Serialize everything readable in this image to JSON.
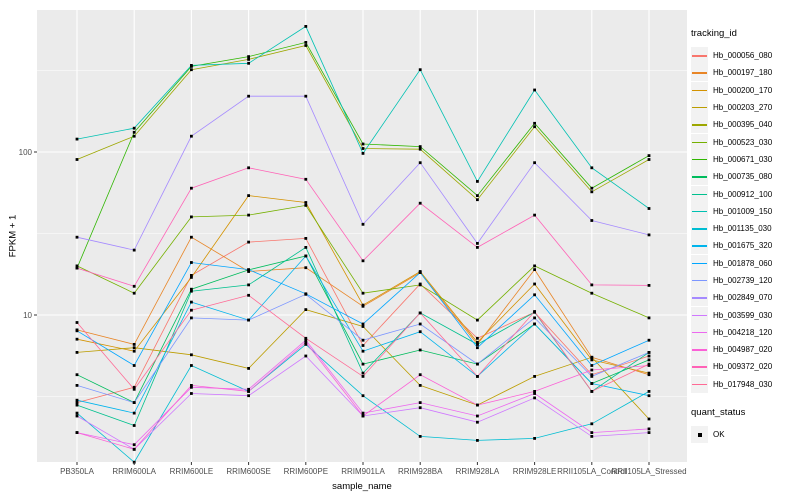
{
  "chart_data": {
    "type": "line",
    "title": "",
    "xlabel": "sample_name",
    "ylabel": "FPKM + 1",
    "y_scale": "log10",
    "y_ticks": [
      100,
      10
    ],
    "y_minor_gridlines": [
      316.23,
      31.62,
      3.162
    ],
    "ylim_pixels_note": "log axis, decade height 163px",
    "legend_position": "right",
    "grid": true,
    "categories": [
      "PB350LA",
      "RRIM600LA",
      "RRIM600LE",
      "RRIM600SE",
      "RRIM600PE",
      "RRIM901LA",
      "RRIM928BA",
      "RRIM928LA",
      "RRIM928LE",
      "RRII105LA_Control",
      "RRII105LA_Stressed"
    ],
    "series": [
      {
        "name": "Hb_000056_080",
        "color": "#F8766D",
        "values": [
          2.9,
          3.6,
          17.5,
          28,
          29.5,
          6.5,
          15.5,
          7.2,
          10.4,
          4.3,
          5.6
        ]
      },
      {
        "name": "Hb_000197_180",
        "color": "#E88526",
        "values": [
          8.1,
          6.6,
          30,
          18.5,
          19.5,
          11.3,
          18.2,
          6.6,
          19,
          5.5,
          4.3
        ]
      },
      {
        "name": "Hb_000200_170",
        "color": "#D39200",
        "values": [
          7.1,
          6.0,
          17,
          54,
          49,
          11.5,
          18.5,
          6.8,
          15.5,
          5.3,
          4.4
        ]
      },
      {
        "name": "Hb_000203_270",
        "color": "#BC9D00",
        "values": [
          5.9,
          6.3,
          5.7,
          4.7,
          10.8,
          8.5,
          3.7,
          2.8,
          4.2,
          5.5,
          2.3
        ]
      },
      {
        "name": "Hb_000395_040",
        "color": "#9DA700",
        "values": [
          90,
          125,
          320,
          370,
          450,
          105,
          104,
          51,
          143,
          57,
          90
        ]
      },
      {
        "name": "Hb_000523_030",
        "color": "#75B000",
        "values": [
          20,
          13.6,
          40,
          41,
          47,
          13.6,
          15.3,
          9.3,
          20,
          13.6,
          9.6
        ]
      },
      {
        "name": "Hb_000671_030",
        "color": "#2FB600",
        "values": [
          19.4,
          132,
          335,
          385,
          470,
          112,
          108,
          54,
          150,
          60,
          95
        ]
      },
      {
        "name": "Hb_000735_080",
        "color": "#00BC5D",
        "values": [
          4.3,
          2.9,
          14.4,
          18.9,
          23,
          5.0,
          6.1,
          5.0,
          8.8,
          3.8,
          5.3
        ]
      },
      {
        "name": "Hb_000912_100",
        "color": "#00C08E",
        "values": [
          2.8,
          2.1,
          14,
          15.3,
          26,
          4.4,
          10.3,
          6.6,
          10.4,
          3.4,
          5.9
        ]
      },
      {
        "name": "Hb_001009_150",
        "color": "#00C1B2",
        "values": [
          120,
          140,
          340,
          350,
          590,
          98,
          320,
          66,
          240,
          80,
          45
        ]
      },
      {
        "name": "Hb_001135_030",
        "color": "#00BDD2",
        "values": [
          2.5,
          1.25,
          4.9,
          3.4,
          6.6,
          3.2,
          1.8,
          1.7,
          1.75,
          2.15,
          3.4
        ]
      },
      {
        "name": "Hb_001675_320",
        "color": "#00B4EC",
        "values": [
          3.0,
          2.5,
          12,
          9.3,
          23,
          6.0,
          7.9,
          4.2,
          8.8,
          3.8,
          3.2
        ]
      },
      {
        "name": "Hb_001878_060",
        "color": "#00A6FF",
        "values": [
          8.0,
          4.9,
          21,
          19,
          13.5,
          8.8,
          18.2,
          6.3,
          13.3,
          4.9,
          7.0
        ]
      },
      {
        "name": "Hb_002739_120",
        "color": "#7C96FF",
        "values": [
          3.7,
          2.9,
          9.6,
          9.3,
          13.4,
          7.0,
          8.8,
          5.0,
          9.6,
          4.2,
          5.9
        ]
      },
      {
        "name": "Hb_002849_070",
        "color": "#A58AFF",
        "values": [
          30,
          25,
          125,
          220,
          220,
          36,
          86,
          27.5,
          86,
          38,
          31
        ]
      },
      {
        "name": "Hb_003599_030",
        "color": "#CF78FF",
        "values": [
          2.4,
          1.5,
          3.3,
          3.2,
          5.6,
          2.4,
          2.7,
          2.2,
          3.1,
          1.8,
          1.9
        ]
      },
      {
        "name": "Hb_004218_120",
        "color": "#EC69EF",
        "values": [
          1.9,
          1.6,
          3.6,
          3.5,
          7.0,
          2.5,
          2.9,
          2.4,
          3.3,
          1.9,
          2.0
        ]
      },
      {
        "name": "Hb_004987_020",
        "color": "#FB61D7",
        "values": [
          1.9,
          1.5,
          3.7,
          3.4,
          6.8,
          2.4,
          4.3,
          2.8,
          3.4,
          4.6,
          4.9
        ]
      },
      {
        "name": "Hb_009372_020",
        "color": "#FF62B6",
        "values": [
          19.4,
          15,
          60,
          80,
          68,
          21.5,
          48.5,
          26,
          41,
          15.3,
          15.2
        ]
      },
      {
        "name": "Hb_017948_030",
        "color": "#FF6A95",
        "values": [
          9.0,
          3.5,
          10.7,
          13.2,
          7.2,
          4.2,
          10.3,
          4.2,
          10.5,
          3.4,
          5.0
        ]
      }
    ]
  },
  "legend": {
    "tracking_title": "tracking_id",
    "quant_title": "quant_status",
    "quant_items": [
      "OK"
    ]
  },
  "colors": {
    "panel_background": "#EBEBEB",
    "gridline": "#FFFFFF",
    "tick_mark": "#333333",
    "tick_label": "#4D4D4D",
    "marker": "#000000",
    "legend_key_background": "#F2F2F2"
  }
}
